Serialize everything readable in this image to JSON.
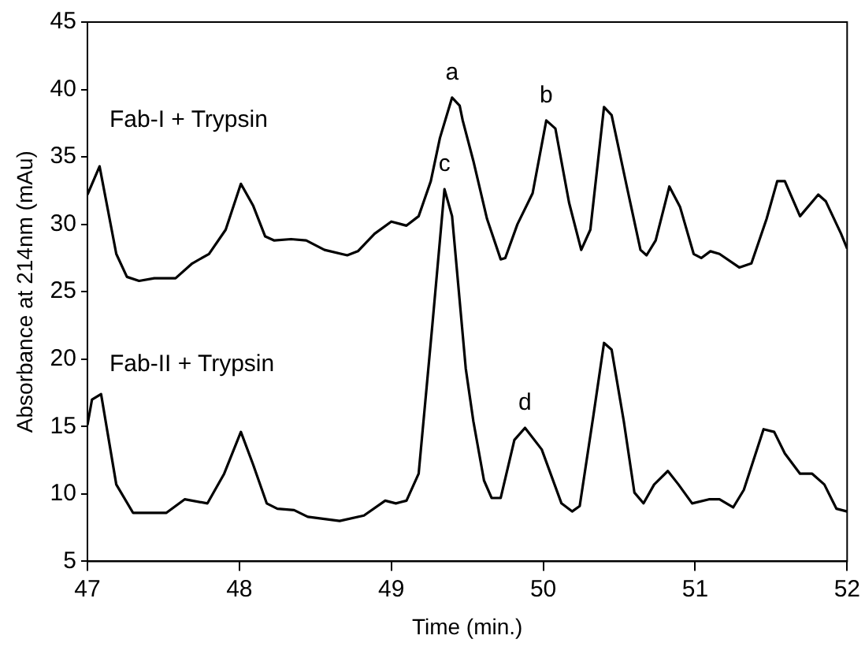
{
  "chart_data": {
    "type": "line",
    "xlabel": "Time (min.)",
    "ylabel": "Absorbance at 214nm (mAu)",
    "xlim": [
      47,
      52
    ],
    "xticks": [
      47,
      48,
      49,
      50,
      51,
      52
    ],
    "ylim": [
      5,
      45
    ],
    "yticks": [
      5,
      10,
      15,
      20,
      25,
      30,
      35,
      40,
      45
    ],
    "grid": false,
    "legend": false,
    "marker": "none",
    "line_style": "solid",
    "series": [
      {
        "name": "Fab-I + Trypsin",
        "color": "#000000",
        "x": [
          47.0,
          47.08,
          47.19,
          47.26,
          47.34,
          47.44,
          47.58,
          47.69,
          47.8,
          47.91,
          48.01,
          48.09,
          48.17,
          48.23,
          48.34,
          48.44,
          48.56,
          48.71,
          48.78,
          48.89,
          49.0,
          49.1,
          49.18,
          49.26,
          49.32,
          49.4,
          49.45,
          49.47,
          49.54,
          49.63,
          49.72,
          49.75,
          49.83,
          49.93,
          50.02,
          50.08,
          50.17,
          50.25,
          50.31,
          50.4,
          50.45,
          50.55,
          50.64,
          50.68,
          50.74,
          50.83,
          50.9,
          50.99,
          51.04,
          51.1,
          51.16,
          51.29,
          51.37,
          51.47,
          51.54,
          51.59,
          51.69,
          51.81,
          51.86,
          51.96,
          52.0
        ],
        "values": [
          32.2,
          34.3,
          27.8,
          26.1,
          25.8,
          26.0,
          26.0,
          27.1,
          27.8,
          29.6,
          33.0,
          31.4,
          29.1,
          28.8,
          28.9,
          28.8,
          28.1,
          27.7,
          28.0,
          29.3,
          30.2,
          29.9,
          30.6,
          33.2,
          36.4,
          39.4,
          38.8,
          37.7,
          34.7,
          30.4,
          27.4,
          27.5,
          30.0,
          32.3,
          37.7,
          37.1,
          31.6,
          28.1,
          29.6,
          38.7,
          38.1,
          32.8,
          28.1,
          27.7,
          28.8,
          32.8,
          31.3,
          27.8,
          27.5,
          28.0,
          27.8,
          26.8,
          27.1,
          30.4,
          33.2,
          33.2,
          30.6,
          32.2,
          31.7,
          29.3,
          28.2
        ]
      },
      {
        "name": "Fab-II + Trypsin",
        "color": "#000000",
        "x": [
          47.0,
          47.03,
          47.09,
          47.19,
          47.3,
          47.52,
          47.64,
          47.79,
          47.9,
          48.01,
          48.09,
          48.18,
          48.25,
          48.36,
          48.45,
          48.66,
          48.82,
          48.96,
          49.03,
          49.1,
          49.18,
          49.27,
          49.35,
          49.4,
          49.49,
          49.54,
          49.61,
          49.66,
          49.72,
          49.81,
          49.88,
          49.99,
          50.12,
          50.19,
          50.24,
          50.33,
          50.4,
          50.45,
          50.53,
          50.6,
          50.66,
          50.73,
          50.82,
          50.89,
          50.98,
          51.09,
          51.16,
          51.25,
          51.32,
          51.45,
          51.52,
          51.59,
          51.69,
          51.77,
          51.85,
          51.93,
          52.0
        ],
        "values": [
          15.1,
          17.0,
          17.4,
          10.7,
          8.6,
          8.6,
          9.6,
          9.3,
          11.5,
          14.6,
          12.2,
          9.3,
          8.9,
          8.8,
          8.3,
          8.0,
          8.4,
          9.5,
          9.3,
          9.5,
          11.5,
          22.5,
          32.6,
          30.6,
          19.3,
          15.4,
          11.0,
          9.7,
          9.7,
          14.0,
          14.9,
          13.3,
          9.3,
          8.7,
          9.1,
          15.8,
          21.2,
          20.7,
          15.4,
          10.1,
          9.3,
          10.7,
          11.7,
          10.7,
          9.3,
          9.6,
          9.6,
          9.0,
          10.3,
          14.8,
          14.6,
          13.0,
          11.5,
          11.5,
          10.7,
          8.9,
          8.7
        ]
      }
    ],
    "annotations": [
      {
        "text": "a",
        "x": 49.4,
        "y": 39.4
      },
      {
        "text": "b",
        "x": 50.02,
        "y": 37.7
      },
      {
        "text": "c",
        "x": 49.35,
        "y": 32.6
      },
      {
        "text": "d",
        "x": 49.88,
        "y": 14.9
      }
    ]
  }
}
